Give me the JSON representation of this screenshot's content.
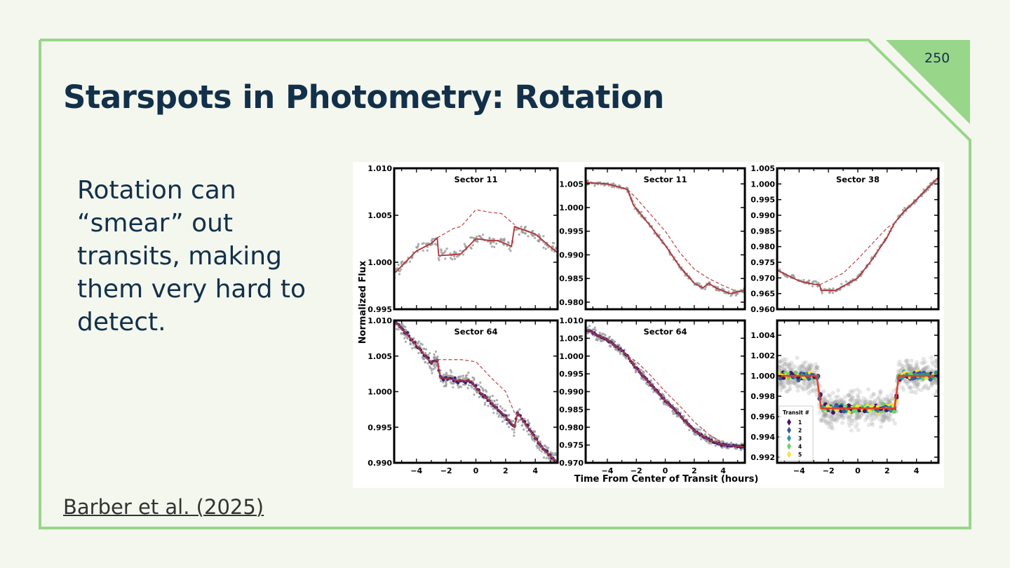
{
  "slide": {
    "page_number": "250",
    "title": "Starspots in Photometry: Rotation",
    "body": "Rotation can “smear” out transits, making them very hard to detect.",
    "citation": "Barber et al. (2025)",
    "colors": {
      "background": "#f4f7ee",
      "accent": "#98d68a",
      "text": "#12304a"
    }
  },
  "chart_data": {
    "type": "scatter",
    "ylabel": "Normalized Flux",
    "xlabel": "Time From Center of Transit (hours)",
    "xlim": [
      -5.5,
      5.5
    ],
    "xticks": [
      -4,
      -2,
      0,
      2,
      4
    ],
    "colors": {
      "scatter": "#9e9e9e",
      "model": "#b0353a",
      "model_no_spot": "#c0504d"
    },
    "panels": [
      {
        "title": "Sector 11",
        "ylim": [
          0.995,
          1.01
        ],
        "yticks": [
          "0.995",
          "1.000",
          "1.005",
          "1.010"
        ],
        "noise": 0.0006,
        "model": [
          [
            -5.5,
            0.9988
          ],
          [
            -4,
            1.0012
          ],
          [
            -3,
            1.002
          ],
          [
            -2.6,
            1.0026
          ],
          [
            -2.5,
            1.0007
          ],
          [
            -1.5,
            1.0008
          ],
          [
            -1,
            1.0009
          ],
          [
            0,
            1.0025
          ],
          [
            1,
            1.0023
          ],
          [
            1.5,
            1.0023
          ],
          [
            2.4,
            1.0017
          ],
          [
            2.6,
            1.0038
          ],
          [
            4,
            1.003
          ],
          [
            5.5,
            1.001
          ]
        ],
        "model_no_spot": [
          [
            -2.6,
            1.0026
          ],
          [
            -1.5,
            1.0036
          ],
          [
            -1,
            1.0038
          ],
          [
            0,
            1.0056
          ],
          [
            1,
            1.0053
          ],
          [
            1.7,
            1.0052
          ],
          [
            2.6,
            1.004
          ]
        ]
      },
      {
        "title": "Sector 11",
        "ylim": [
          0.9785,
          1.0083
        ],
        "yticks": [
          "0.980",
          "0.985",
          "0.990",
          "0.995",
          "1.000",
          "1.005"
        ],
        "noise": 0.0005,
        "model": [
          [
            -5.5,
            1.0053
          ],
          [
            -4,
            1.005
          ],
          [
            -3,
            1.0042
          ],
          [
            -2.6,
            1.0038
          ],
          [
            -2.2,
            1.0005
          ],
          [
            -1,
            0.996
          ],
          [
            0,
            0.992
          ],
          [
            1,
            0.9875
          ],
          [
            2,
            0.984
          ],
          [
            2.6,
            0.983
          ],
          [
            3,
            0.984
          ],
          [
            3.5,
            0.983
          ],
          [
            4.5,
            0.9818
          ],
          [
            5.5,
            0.9825
          ]
        ],
        "model_no_spot": [
          [
            -2.6,
            1.0038
          ],
          [
            -2,
            1.002
          ],
          [
            -1,
            0.9985
          ],
          [
            0,
            0.995
          ],
          [
            1,
            0.9905
          ],
          [
            2,
            0.987
          ],
          [
            3,
            0.985
          ],
          [
            4,
            0.9835
          ],
          [
            5,
            0.9822
          ]
        ]
      },
      {
        "title": "Sector 38",
        "ylim": [
          0.96,
          1.005
        ],
        "yticks": [
          "0.960",
          "0.965",
          "0.970",
          "0.975",
          "0.980",
          "0.985",
          "0.990",
          "0.995",
          "1.000",
          "1.005"
        ],
        "noise": 0.0008,
        "model": [
          [
            -5.5,
            0.9725
          ],
          [
            -4,
            0.969
          ],
          [
            -3,
            0.968
          ],
          [
            -2.6,
            0.9678
          ],
          [
            -2.5,
            0.966
          ],
          [
            -1.5,
            0.966
          ],
          [
            0,
            0.97
          ],
          [
            1,
            0.976
          ],
          [
            2,
            0.983
          ],
          [
            2.5,
            0.9875
          ],
          [
            3,
            0.9905
          ],
          [
            4,
            0.995
          ],
          [
            5.5,
            1.0022
          ]
        ],
        "model_no_spot": [
          [
            -2.6,
            0.9678
          ],
          [
            -1,
            0.9715
          ],
          [
            0,
            0.976
          ],
          [
            1,
            0.981
          ],
          [
            2,
            0.986
          ],
          [
            2.5,
            0.9875
          ]
        ]
      },
      {
        "title": "Sector 64",
        "ylim": [
          0.99,
          1.01
        ],
        "yticks": [
          "0.990",
          "0.995",
          "1.000",
          "1.005",
          "1.010"
        ],
        "noise": 0.0011,
        "binned": true,
        "model": [
          [
            -5.5,
            1.01
          ],
          [
            -4,
            1.0065
          ],
          [
            -3,
            1.004
          ],
          [
            -2.6,
            1.0045
          ],
          [
            -2.4,
            1.002
          ],
          [
            -1,
            1.0015
          ],
          [
            -0.3,
            1.0015
          ],
          [
            0,
            1.0005
          ],
          [
            1,
            0.9985
          ],
          [
            2,
            0.9965
          ],
          [
            2.6,
            0.995
          ],
          [
            2.8,
            0.997
          ],
          [
            3.5,
            0.995
          ],
          [
            4.5,
            0.992
          ],
          [
            5.5,
            0.99
          ]
        ],
        "model_no_spot": [
          [
            -2.6,
            1.0045
          ],
          [
            -1,
            1.0045
          ],
          [
            0,
            1.0042
          ],
          [
            1,
            1.002
          ],
          [
            2,
            1.0
          ],
          [
            2.6,
            0.997
          ]
        ]
      },
      {
        "title": "Sector 64",
        "ylim": [
          0.97,
          1.01
        ],
        "yticks": [
          "0.970",
          "0.975",
          "0.980",
          "0.985",
          "0.990",
          "0.995",
          "1.000",
          "1.005",
          "1.010"
        ],
        "noise": 0.0012,
        "binned": true,
        "model": [
          [
            -5.5,
            1.0075
          ],
          [
            -4,
            1.0045
          ],
          [
            -3,
            1.0015
          ],
          [
            -2.6,
            1.0
          ],
          [
            -2,
            0.9965
          ],
          [
            -1,
            0.992
          ],
          [
            0,
            0.9875
          ],
          [
            1,
            0.9835
          ],
          [
            2,
            0.979
          ],
          [
            3,
            0.9765
          ],
          [
            4,
            0.975
          ],
          [
            5.5,
            0.9745
          ]
        ],
        "model_no_spot": [
          [
            -2.6,
            1.0
          ],
          [
            -2,
            0.9985
          ],
          [
            -1,
            0.9945
          ],
          [
            0,
            0.99
          ],
          [
            1,
            0.986
          ],
          [
            2,
            0.9815
          ],
          [
            3,
            0.978
          ],
          [
            4,
            0.9755
          ]
        ]
      },
      {
        "title": "",
        "ylim": [
          0.99145,
          1.00545
        ],
        "yticks": [
          "0.992",
          "0.994",
          "0.996",
          "0.998",
          "1.000",
          "1.002",
          "1.004"
        ],
        "noise": 0.0016,
        "model": [
          [
            -5.5,
            1.0
          ],
          [
            -2.8,
            1.0
          ],
          [
            -2.5,
            0.9968
          ],
          [
            2.5,
            0.9968
          ],
          [
            2.8,
            1.0
          ],
          [
            5.5,
            1.0
          ]
        ],
        "model_no_spot": [],
        "legend": {
          "title": "Transit #",
          "entries": [
            "1",
            "2",
            "3",
            "4",
            "5"
          ],
          "colors": [
            "#46166b",
            "#3b5a9a",
            "#2a9a94",
            "#6fcf6a",
            "#f2e43a"
          ]
        }
      }
    ]
  }
}
